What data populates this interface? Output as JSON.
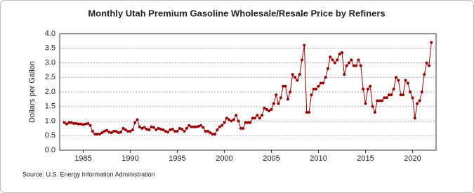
{
  "chart_data": {
    "type": "line",
    "title": "Monthly Utah Premium Gasoline Wholesale/Resale Price by Refiners",
    "y_label": "Dollars per Gallon",
    "source": "Source: U.S. Energy Information Administration",
    "x": [
      1983,
      1983.25,
      1983.5,
      1983.75,
      1984,
      1984.25,
      1984.5,
      1984.75,
      1985,
      1985.25,
      1985.5,
      1985.75,
      1986,
      1986.25,
      1986.5,
      1986.75,
      1987,
      1987.25,
      1987.5,
      1987.75,
      1988,
      1988.25,
      1988.5,
      1988.75,
      1989,
      1989.25,
      1989.5,
      1989.75,
      1990,
      1990.25,
      1990.5,
      1990.75,
      1991,
      1991.25,
      1991.5,
      1991.75,
      1992,
      1992.25,
      1992.5,
      1992.75,
      1993,
      1993.25,
      1993.5,
      1993.75,
      1994,
      1994.25,
      1994.5,
      1994.75,
      1995,
      1995.25,
      1995.5,
      1995.75,
      1996,
      1996.25,
      1996.5,
      1996.75,
      1997,
      1997.25,
      1997.5,
      1997.75,
      1998,
      1998.25,
      1998.5,
      1998.75,
      1999,
      1999.25,
      1999.5,
      1999.75,
      2000,
      2000.25,
      2000.5,
      2000.75,
      2001,
      2001.25,
      2001.5,
      2001.75,
      2002,
      2002.25,
      2002.5,
      2002.75,
      2003,
      2003.25,
      2003.5,
      2003.75,
      2004,
      2004.25,
      2004.5,
      2004.75,
      2005,
      2005.25,
      2005.5,
      2005.75,
      2006,
      2006.25,
      2006.5,
      2006.75,
      2007,
      2007.25,
      2007.5,
      2007.75,
      2008,
      2008.25,
      2008.5,
      2008.75,
      2009,
      2009.25,
      2009.5,
      2009.75,
      2010,
      2010.25,
      2010.5,
      2010.75,
      2011,
      2011.25,
      2011.5,
      2011.75,
      2012,
      2012.25,
      2012.5,
      2012.75,
      2013,
      2013.25,
      2013.5,
      2013.75,
      2014,
      2014.25,
      2014.5,
      2014.75,
      2015,
      2015.25,
      2015.5,
      2015.75,
      2016,
      2016.25,
      2016.5,
      2016.75,
      2017,
      2017.25,
      2017.5,
      2017.75,
      2018,
      2018.25,
      2018.5,
      2018.75,
      2019,
      2019.25,
      2019.5,
      2019.75,
      2020,
      2020.25,
      2020.5,
      2020.75,
      2021,
      2021.25,
      2021.5,
      2021.75,
      2022
    ],
    "series": [
      {
        "name": "Utah Premium Gasoline Wholesale/Resale Price",
        "color": "#990000",
        "values": [
          0.95,
          0.9,
          0.95,
          0.95,
          0.92,
          0.92,
          0.9,
          0.9,
          0.88,
          0.9,
          0.92,
          0.85,
          0.65,
          0.55,
          0.55,
          0.55,
          0.6,
          0.65,
          0.68,
          0.62,
          0.6,
          0.65,
          0.65,
          0.6,
          0.62,
          0.75,
          0.7,
          0.65,
          0.65,
          0.7,
          0.95,
          1.05,
          0.8,
          0.75,
          0.78,
          0.72,
          0.7,
          0.8,
          0.78,
          0.7,
          0.75,
          0.72,
          0.7,
          0.65,
          0.62,
          0.7,
          0.72,
          0.65,
          0.65,
          0.75,
          0.72,
          0.65,
          0.75,
          0.85,
          0.8,
          0.8,
          0.8,
          0.82,
          0.85,
          0.78,
          0.65,
          0.65,
          0.6,
          0.55,
          0.55,
          0.7,
          0.8,
          0.85,
          0.95,
          1.1,
          1.05,
          1.0,
          1.05,
          1.2,
          1.0,
          0.75,
          0.75,
          0.95,
          0.95,
          0.95,
          1.1,
          1.1,
          1.2,
          1.1,
          1.2,
          1.45,
          1.4,
          1.35,
          1.4,
          1.6,
          1.9,
          1.6,
          1.8,
          2.2,
          2.2,
          1.75,
          2.0,
          2.6,
          2.5,
          2.4,
          2.6,
          3.1,
          3.6,
          1.3,
          1.3,
          1.9,
          2.1,
          2.1,
          2.2,
          2.3,
          2.3,
          2.5,
          2.8,
          3.2,
          3.1,
          3.0,
          3.1,
          3.3,
          3.35,
          2.6,
          2.9,
          3.0,
          3.1,
          2.9,
          2.9,
          3.1,
          2.9,
          2.1,
          1.6,
          2.1,
          2.2,
          1.5,
          1.3,
          1.7,
          1.7,
          1.7,
          1.8,
          1.8,
          1.9,
          1.9,
          2.1,
          2.5,
          2.4,
          1.9,
          1.9,
          2.4,
          2.3,
          2.0,
          1.8,
          1.1,
          1.6,
          1.7,
          2.0,
          2.6,
          3.0,
          2.9,
          3.7
        ]
      }
    ],
    "xlim": [
      1982.5,
      2022.5
    ],
    "xticks": [
      1985,
      1990,
      1995,
      2000,
      2005,
      2010,
      2015,
      2020
    ],
    "ylim": [
      0,
      4
    ],
    "yticks": [
      {
        "value": 0,
        "label": "0.0"
      },
      {
        "value": 0.5,
        "label": "0.5"
      },
      {
        "value": 1,
        "label": "1.0"
      },
      {
        "value": 1.5,
        "label": "1.5"
      },
      {
        "value": 2,
        "label": "2.0"
      },
      {
        "value": 2.5,
        "label": "2.5"
      },
      {
        "value": 3,
        "label": "3.0"
      },
      {
        "value": 3.5,
        "label": "3.5"
      },
      {
        "value": 4,
        "label": "4.0"
      }
    ],
    "grid": true
  }
}
